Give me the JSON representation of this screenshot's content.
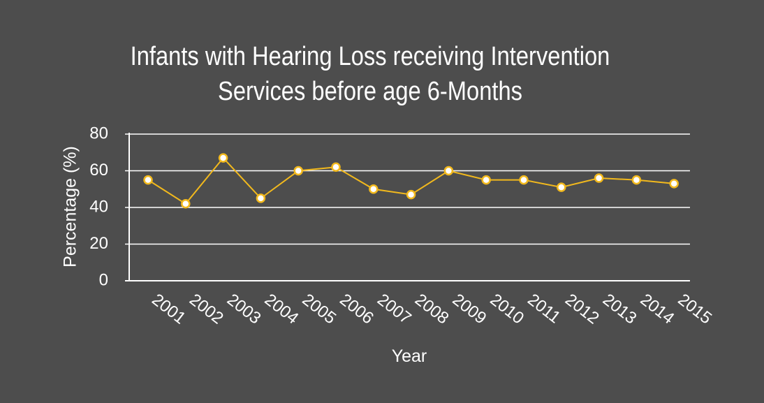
{
  "chart_data": {
    "type": "line",
    "title_lines": [
      "Infants with Hearing Loss receiving Intervention",
      "Services before age 6-Months"
    ],
    "xlabel": "Year",
    "ylabel": "Percentage (%)",
    "categories": [
      "2001",
      "2002",
      "2003",
      "2004",
      "2005",
      "2006",
      "2007",
      "2008",
      "2009",
      "2010",
      "2011",
      "2012",
      "2013",
      "2014",
      "2015"
    ],
    "series": [
      {
        "values": [
          55,
          42,
          67,
          45,
          60,
          62,
          50,
          47,
          60,
          55,
          55,
          51,
          56,
          55,
          53
        ]
      }
    ],
    "ylim": [
      0,
      80
    ],
    "yticks": [
      0,
      20,
      40,
      60,
      80
    ],
    "grid": true,
    "legend": "none",
    "colors": {
      "background": "#4d4d4d",
      "line": "#f2b91d",
      "marker_fill": "#ffffff",
      "grid": "#ffffff",
      "text": "#ffffff"
    }
  }
}
